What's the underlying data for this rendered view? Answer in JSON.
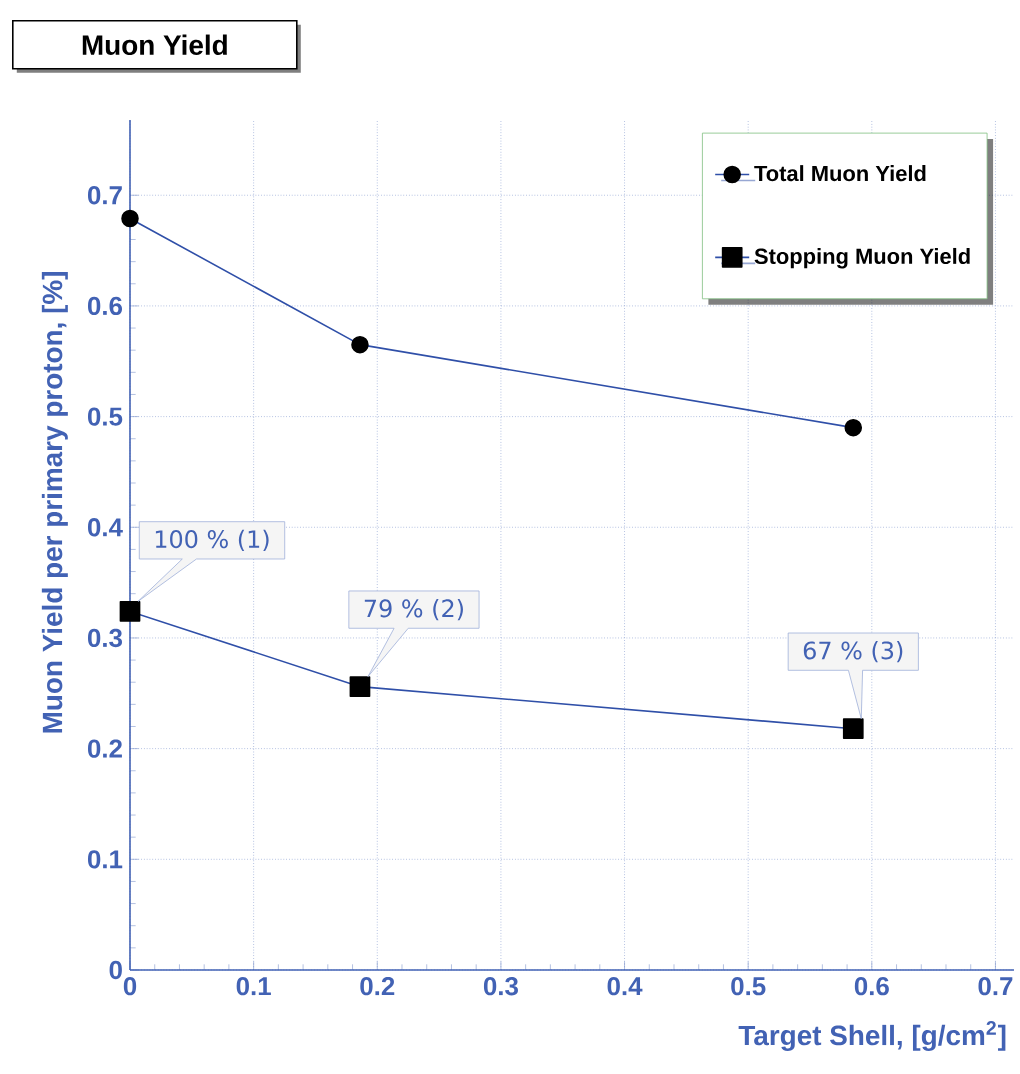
{
  "chart_data": {
    "type": "line",
    "title": "Muon Yield",
    "xlabel": "Target Shell,  [g/cm$^{2}$]",
    "ylabel": "Muon Yield per primary proton, [%]",
    "series": [
      {
        "name": "Total Muon Yield",
        "color": "#2f4fa8",
        "marker": "circle",
        "x": [
          0,
          0.186,
          0.585
        ],
        "values": [
          0.679,
          0.565,
          0.49
        ]
      },
      {
        "name": "Stopping Muon Yield",
        "color": "#2f4fa8",
        "marker": "square",
        "x": [
          0,
          0.186,
          0.585
        ],
        "values": [
          0.324,
          0.256,
          0.218
        ]
      }
    ],
    "annotations": [
      {
        "text": "100 %  (1)",
        "x": 0,
        "y": 0.324
      },
      {
        "text": "79 %  (2)",
        "x": 0.186,
        "y": 0.256
      },
      {
        "text": "67 %  (3)",
        "x": 0.585,
        "y": 0.218
      }
    ],
    "xlim": [
      0,
      0.715
    ],
    "ylim": [
      0,
      0.768
    ],
    "xticks": [
      0,
      0.1,
      0.2,
      0.3,
      0.4,
      0.5,
      0.6,
      0.7
    ],
    "yticks": [
      0,
      0.1,
      0.2,
      0.3,
      0.4,
      0.5,
      0.6,
      0.7
    ],
    "grid": true,
    "legend": "top right"
  }
}
